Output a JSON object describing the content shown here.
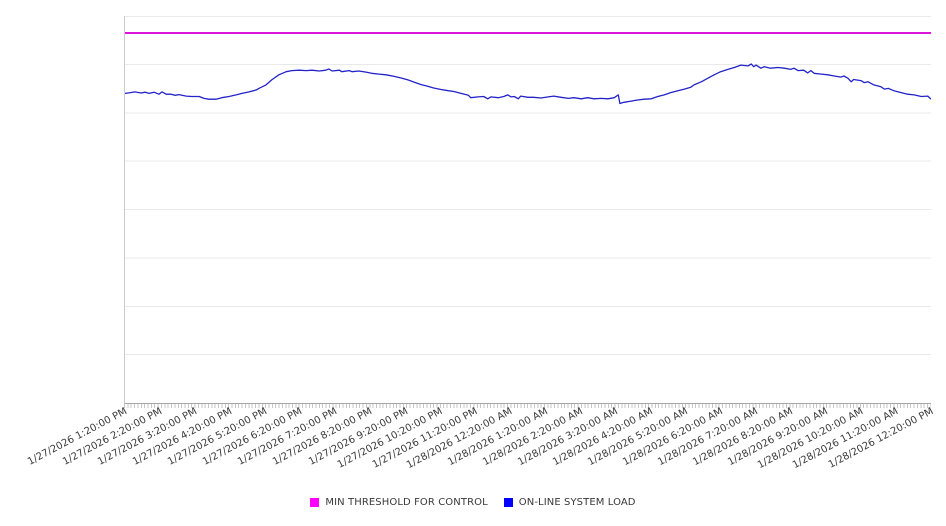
{
  "chart_data": {
    "type": "line",
    "title": "",
    "x_axis": {
      "tick_labels": [
        "1/27/2026 1:20:00 PM",
        "1/27/2026 2:20:00 PM",
        "1/27/2026 3:20:00 PM",
        "1/27/2026 4:20:00 PM",
        "1/27/2026 5:20:00 PM",
        "1/27/2026 6:20:00 PM",
        "1/27/2026 7:20:00 PM",
        "1/27/2026 8:20:00 PM",
        "1/27/2026 9:20:00 PM",
        "1/27/2026 10:20:00 PM",
        "1/27/2026 11:20:00 PM",
        "1/28/2026 12:20:00 AM",
        "1/28/2026 1:20:00 AM",
        "1/28/2026 2:20:00 AM",
        "1/28/2026 3:20:00 AM",
        "1/28/2026 4:20:00 AM",
        "1/28/2026 5:20:00 AM",
        "1/28/2026 6:20:00 AM",
        "1/28/2026 7:20:00 AM",
        "1/28/2026 8:20:00 AM",
        "1/28/2026 9:20:00 AM",
        "1/28/2026 10:20:00 AM",
        "1/28/2026 11:20:00 AM",
        "1/28/2026 12:20:00 PM"
      ],
      "minor_ticks_between_labels": 10,
      "label_rotation_deg": -28
    },
    "y_axis": {
      "min": 0,
      "max": 100,
      "gridline_step": 12.5,
      "tick_labels_visible": false,
      "note": "no y-axis tick labels are shown in the image; values are estimated as percent of plot height"
    },
    "grid_color": "#e9e9e9",
    "axis_color": "#a6a6a6",
    "series": [
      {
        "name": "MIN THRESHOLD FOR CONTROL",
        "style": "constant",
        "line_color": "#d916d9",
        "line_width": 2,
        "value": 95.6
      },
      {
        "name": "ON-LINE SYSTEM LOAD",
        "style": "line",
        "line_color": "#2323c8",
        "line_width": 1.3,
        "points": [
          [
            0,
            80.0
          ],
          [
            0.7,
            80.2
          ],
          [
            1.2,
            80.4
          ],
          [
            2.0,
            80.1
          ],
          [
            2.5,
            80.3
          ],
          [
            3.0,
            80.0
          ],
          [
            3.6,
            80.3
          ],
          [
            4.2,
            79.8
          ],
          [
            4.6,
            80.4
          ],
          [
            5.1,
            79.8
          ],
          [
            5.7,
            79.8
          ],
          [
            6.2,
            79.5
          ],
          [
            6.7,
            79.7
          ],
          [
            7.6,
            79.3
          ],
          [
            8.3,
            79.2
          ],
          [
            9.2,
            79.2
          ],
          [
            9.8,
            78.7
          ],
          [
            10.4,
            78.5
          ],
          [
            11.3,
            78.5
          ],
          [
            12.0,
            78.9
          ],
          [
            12.9,
            79.2
          ],
          [
            13.8,
            79.6
          ],
          [
            14.5,
            80.0
          ],
          [
            15.4,
            80.4
          ],
          [
            16.3,
            80.9
          ],
          [
            16.6,
            81.3
          ],
          [
            17.5,
            82.2
          ],
          [
            18.2,
            83.5
          ],
          [
            19.1,
            84.8
          ],
          [
            20.0,
            85.6
          ],
          [
            20.7,
            85.9
          ],
          [
            21.6,
            86.0
          ],
          [
            22.5,
            85.9
          ],
          [
            23.2,
            86.0
          ],
          [
            24.1,
            85.8
          ],
          [
            24.9,
            86.0
          ],
          [
            25.3,
            86.3
          ],
          [
            25.7,
            85.8
          ],
          [
            26.6,
            86.0
          ],
          [
            26.9,
            85.6
          ],
          [
            27.8,
            85.9
          ],
          [
            28.2,
            85.6
          ],
          [
            29.0,
            85.8
          ],
          [
            29.9,
            85.5
          ],
          [
            30.6,
            85.2
          ],
          [
            31.5,
            85.0
          ],
          [
            32.4,
            84.8
          ],
          [
            33.4,
            84.4
          ],
          [
            34.2,
            84.0
          ],
          [
            35.1,
            83.5
          ],
          [
            35.9,
            82.9
          ],
          [
            36.7,
            82.3
          ],
          [
            37.6,
            81.8
          ],
          [
            38.3,
            81.4
          ],
          [
            39.2,
            81.0
          ],
          [
            40.1,
            80.7
          ],
          [
            40.8,
            80.5
          ],
          [
            41.7,
            80.0
          ],
          [
            42.6,
            79.5
          ],
          [
            42.9,
            78.9
          ],
          [
            43.8,
            79.1
          ],
          [
            44.5,
            79.2
          ],
          [
            45.0,
            78.6
          ],
          [
            45.4,
            79.1
          ],
          [
            46.3,
            78.9
          ],
          [
            47.0,
            79.2
          ],
          [
            47.5,
            79.6
          ],
          [
            47.9,
            79.1
          ],
          [
            48.3,
            79.2
          ],
          [
            48.8,
            78.6
          ],
          [
            49.1,
            79.3
          ],
          [
            50.0,
            79.0
          ],
          [
            50.7,
            79.0
          ],
          [
            51.6,
            78.8
          ],
          [
            52.5,
            79.1
          ],
          [
            53.2,
            79.3
          ],
          [
            54.1,
            79.0
          ],
          [
            55.0,
            78.7
          ],
          [
            55.7,
            78.9
          ],
          [
            56.6,
            78.6
          ],
          [
            57.4,
            78.9
          ],
          [
            58.2,
            78.6
          ],
          [
            59.1,
            78.7
          ],
          [
            59.9,
            78.6
          ],
          [
            60.7,
            78.9
          ],
          [
            61.2,
            79.6
          ],
          [
            61.4,
            77.4
          ],
          [
            61.9,
            77.7
          ],
          [
            62.8,
            78.0
          ],
          [
            63.6,
            78.3
          ],
          [
            64.4,
            78.5
          ],
          [
            65.3,
            78.6
          ],
          [
            66.1,
            79.2
          ],
          [
            66.9,
            79.6
          ],
          [
            67.7,
            80.2
          ],
          [
            68.6,
            80.7
          ],
          [
            69.4,
            81.1
          ],
          [
            70.2,
            81.6
          ],
          [
            70.6,
            82.2
          ],
          [
            71.5,
            83.0
          ],
          [
            72.3,
            83.9
          ],
          [
            73.1,
            84.8
          ],
          [
            73.9,
            85.6
          ],
          [
            74.8,
            86.2
          ],
          [
            75.6,
            86.7
          ],
          [
            76.4,
            87.3
          ],
          [
            77.3,
            87.1
          ],
          [
            77.7,
            87.6
          ],
          [
            78.0,
            86.9
          ],
          [
            78.3,
            87.3
          ],
          [
            78.9,
            86.5
          ],
          [
            79.3,
            86.9
          ],
          [
            80.1,
            86.5
          ],
          [
            81.0,
            86.7
          ],
          [
            81.8,
            86.5
          ],
          [
            82.6,
            86.2
          ],
          [
            83.0,
            86.5
          ],
          [
            83.5,
            85.9
          ],
          [
            84.2,
            86.0
          ],
          [
            84.7,
            85.3
          ],
          [
            85.1,
            85.9
          ],
          [
            85.5,
            85.2
          ],
          [
            86.4,
            85.0
          ],
          [
            87.2,
            84.8
          ],
          [
            88.0,
            84.5
          ],
          [
            88.8,
            84.2
          ],
          [
            89.2,
            84.5
          ],
          [
            89.7,
            83.9
          ],
          [
            90.1,
            83.0
          ],
          [
            90.4,
            83.6
          ],
          [
            91.3,
            83.3
          ],
          [
            91.7,
            82.8
          ],
          [
            92.2,
            83.0
          ],
          [
            92.9,
            82.2
          ],
          [
            93.8,
            81.7
          ],
          [
            94.2,
            81.1
          ],
          [
            94.7,
            81.3
          ],
          [
            95.4,
            80.7
          ],
          [
            96.3,
            80.2
          ],
          [
            97.1,
            79.8
          ],
          [
            97.9,
            79.6
          ],
          [
            98.8,
            79.2
          ],
          [
            99.6,
            79.3
          ],
          [
            100,
            78.5
          ]
        ]
      }
    ],
    "legend": {
      "position": "bottom",
      "items": [
        {
          "label": "MIN THRESHOLD FOR CONTROL",
          "color": "#ff00ff"
        },
        {
          "label": "ON-LINE SYSTEM LOAD",
          "color": "#0000ff"
        }
      ]
    }
  }
}
